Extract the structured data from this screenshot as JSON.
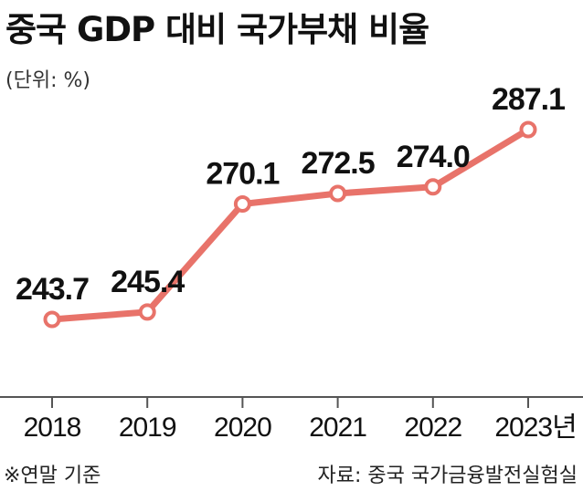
{
  "title": "중국 GDP 대비 국가부채 비율",
  "unit": "(단위: %)",
  "footnote": "※연말 기준",
  "source": "자료: 중국 국가금융발전실험실",
  "colors": {
    "line": "#e8736a",
    "marker_fill": "#ffffff",
    "axis": "#555555"
  },
  "chart_data": {
    "type": "line",
    "title": "중국 GDP 대비 국가부채 비율",
    "categories": [
      "2018",
      "2019",
      "2020",
      "2021",
      "2022",
      "2023년"
    ],
    "series": [
      {
        "values": [
          243.7,
          245.4,
          270.1,
          272.5,
          274.0,
          287.1
        ],
        "labels": [
          "243.7",
          "245.4",
          "270.1",
          "272.5",
          "274.0",
          "287.1"
        ]
      }
    ],
    "xlabel": "",
    "ylabel": "",
    "grid": false
  }
}
